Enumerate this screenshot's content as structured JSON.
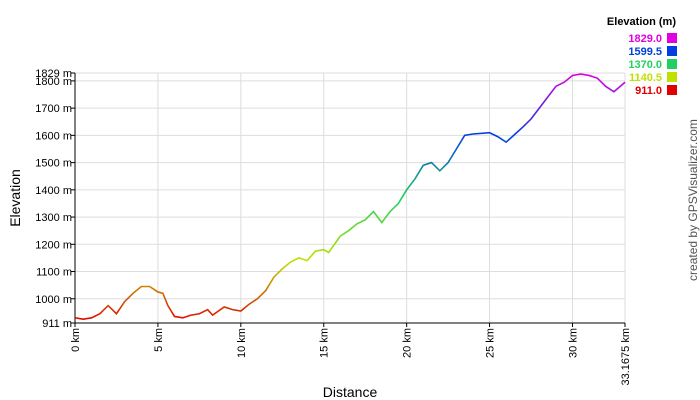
{
  "chart_data": {
    "type": "line",
    "x_label": "Distance",
    "y_label": "Elevation",
    "credit": "created by GPSVisualizer.com",
    "legend_title": "Elevation (m)",
    "legend": [
      {
        "value": 1829,
        "label": "1829.0",
        "color": "#e000e0"
      },
      {
        "value": 1599.5,
        "label": "1599.5",
        "color": "#0040e0"
      },
      {
        "value": 1370,
        "label": "1370.0",
        "color": "#20d060"
      },
      {
        "value": 1140.5,
        "label": "1140.5",
        "color": "#c0e000"
      },
      {
        "value": 911,
        "label": "911.0",
        "color": "#e00000"
      }
    ],
    "xlim": [
      0,
      33.1675
    ],
    "ylim": [
      911,
      1829
    ],
    "xticks": [
      {
        "value": 0,
        "label": "0 km"
      },
      {
        "value": 5,
        "label": "5 km"
      },
      {
        "value": 10,
        "label": "10 km"
      },
      {
        "value": 15,
        "label": "15 km"
      },
      {
        "value": 20,
        "label": "20 km"
      },
      {
        "value": 25,
        "label": "25 km"
      },
      {
        "value": 30,
        "label": "30 km"
      },
      {
        "value": 33.1675,
        "label": "33.1675 km"
      }
    ],
    "yticks": [
      {
        "value": 911,
        "label": "911 m"
      },
      {
        "value": 1000,
        "label": "1000 m"
      },
      {
        "value": 1100,
        "label": "1100 m"
      },
      {
        "value": 1200,
        "label": "1200 m"
      },
      {
        "value": 1300,
        "label": "1300 m"
      },
      {
        "value": 1400,
        "label": "1400 m"
      },
      {
        "value": 1500,
        "label": "1500 m"
      },
      {
        "value": 1600,
        "label": "1600 m"
      },
      {
        "value": 1700,
        "label": "1700 m"
      },
      {
        "value": 1800,
        "label": "1800 m"
      },
      {
        "value": 1829,
        "label": "1829 m"
      }
    ],
    "grid": true,
    "x": [
      0,
      0.5,
      1,
      1.5,
      2,
      2.5,
      3,
      3.5,
      4,
      4.5,
      5,
      5.3,
      5.6,
      6,
      6.5,
      7,
      7.5,
      8,
      8.3,
      9,
      9.5,
      10,
      10.5,
      11,
      11.5,
      12,
      12.5,
      13,
      13.5,
      14,
      14.5,
      15,
      15.3,
      16,
      16.5,
      17,
      17.5,
      18,
      18.5,
      19,
      19.5,
      20,
      20.5,
      21,
      21.5,
      22,
      22.5,
      23,
      23.5,
      24,
      25,
      25.5,
      26,
      27,
      27.5,
      28,
      28.5,
      29,
      29.5,
      30,
      30.5,
      31,
      31.5,
      32,
      32.5,
      33.1675
    ],
    "series": [
      {
        "name": "Elevation",
        "values": [
          930,
          925,
          930,
          945,
          975,
          945,
          990,
          1020,
          1045,
          1045,
          1025,
          1020,
          975,
          935,
          930,
          940,
          945,
          960,
          940,
          970,
          960,
          955,
          980,
          1000,
          1030,
          1080,
          1110,
          1135,
          1150,
          1140,
          1175,
          1180,
          1170,
          1230,
          1250,
          1275,
          1290,
          1320,
          1280,
          1320,
          1350,
          1400,
          1440,
          1490,
          1500,
          1470,
          1500,
          1550,
          1600,
          1605,
          1610,
          1595,
          1575,
          1630,
          1660,
          1700,
          1740,
          1780,
          1795,
          1820,
          1825,
          1820,
          1810,
          1780,
          1760,
          1795
        ]
      }
    ]
  }
}
